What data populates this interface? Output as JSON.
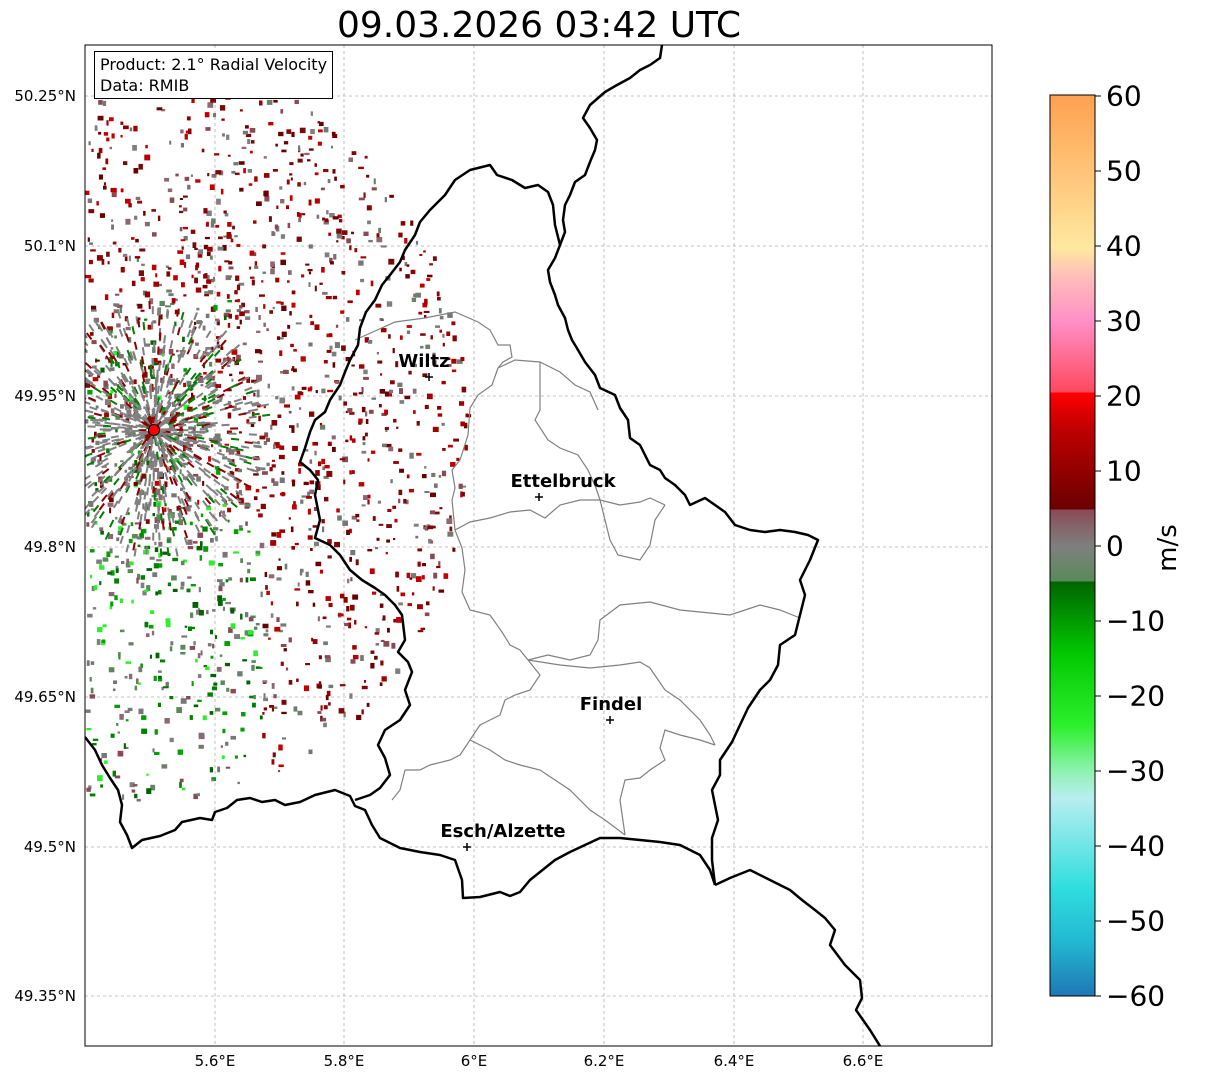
{
  "title": "09.03.2026 03:42 UTC",
  "info": {
    "product": "Product: 2.1° Radial Velocity",
    "source": "Data: RMIB"
  },
  "axes": {
    "lat_ticks": [
      "50.25°N",
      "50.1°N",
      "49.95°N",
      "49.8°N",
      "49.65°N",
      "49.5°N",
      "49.35°N"
    ],
    "lon_ticks": [
      "5.6°E",
      "5.8°E",
      "6°E",
      "6.2°E",
      "6.4°E",
      "6.6°E"
    ]
  },
  "cities": [
    {
      "name": "Wiltz"
    },
    {
      "name": "Ettelbruck"
    },
    {
      "name": "Findel"
    },
    {
      "name": "Esch/Alzette"
    }
  ],
  "colorbar": {
    "unit": "m/s",
    "ticks": [
      "60",
      "50",
      "40",
      "30",
      "20",
      "10",
      "0",
      "−10",
      "−20",
      "−30",
      "−40",
      "−50",
      "−60"
    ],
    "min": -60,
    "max": 60
  },
  "colors": {
    "radar_site": "#ff0000",
    "border": "#000000",
    "canton_border": "#808080",
    "grid": "#b0b0b0"
  }
}
